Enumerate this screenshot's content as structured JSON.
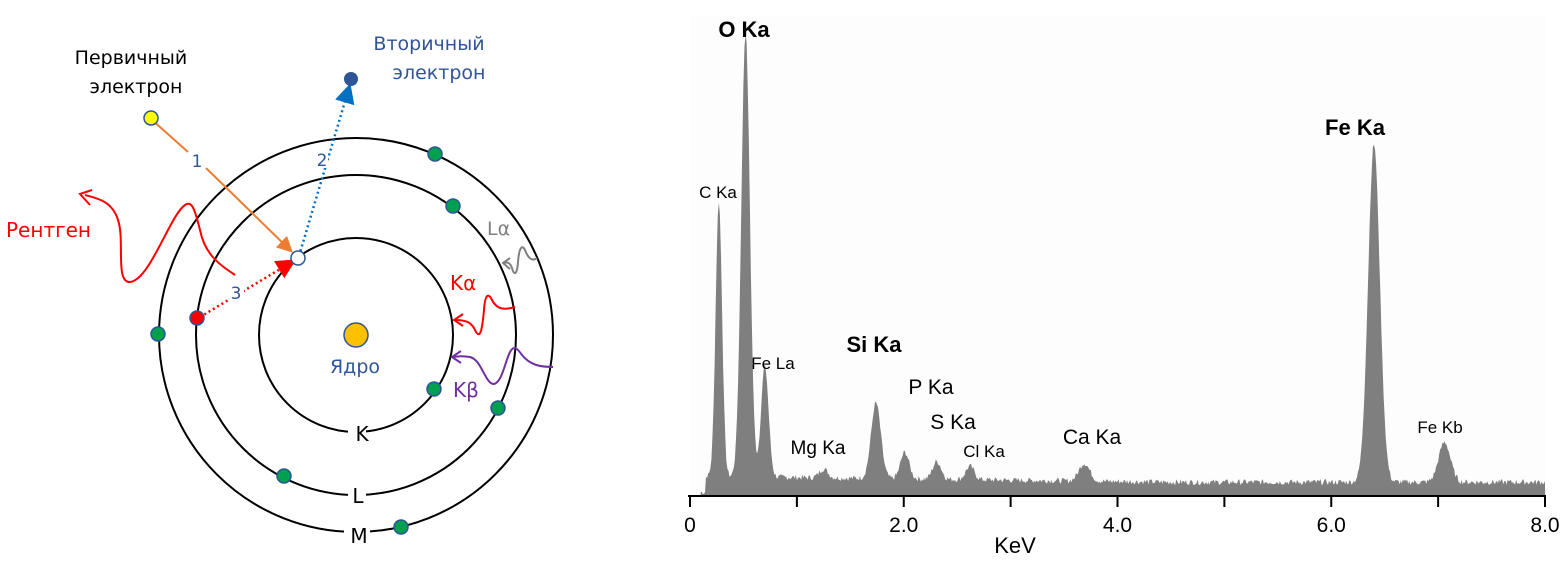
{
  "atom_diagram": {
    "primary_electron_label": [
      "Первичный",
      "электрон"
    ],
    "secondary_electron_label": [
      "Вторичный",
      "электрон"
    ],
    "xray_label": "Рентген",
    "nucleus_label": "Ядро",
    "shell_labels": {
      "K": "K",
      "L": "L",
      "M": "M"
    },
    "step_labels": [
      "1",
      "2",
      "3"
    ],
    "transition_labels": {
      "La": "Lα",
      "Ka": "Kα",
      "Kb": "Kβ"
    },
    "colors": {
      "primary_electron": "#ffff00",
      "secondary_electron": "#2f5597",
      "vacancy_electron": "#ffffff",
      "red_electron": "#ff0000",
      "shell_electron": "#00a050",
      "nucleus": "#ffc000",
      "step1_arrow": "#ed7d31",
      "step2_arrow": "#0070c0",
      "step3_arrow": "#ff0000",
      "xray": "#ff0000",
      "La": "#808080",
      "Ka": "#ff0000",
      "Kb": "#7030a0",
      "blue_text": "#2f5597"
    }
  },
  "chart_data": {
    "type": "area",
    "title": "",
    "xlabel": "KeV",
    "ylabel": "",
    "xlim": [
      0,
      8.0
    ],
    "ylim": [
      0,
      100
    ],
    "x_ticks": [
      0,
      1.0,
      2.0,
      3.0,
      4.0,
      5.0,
      6.0,
      7.0,
      8.0
    ],
    "x_tick_labels": [
      "0",
      "",
      "2.0",
      "",
      "4.0",
      "",
      "6.0",
      "",
      "8.0"
    ],
    "grid": false,
    "background_level": 3,
    "peaks": [
      {
        "label": "C Ka",
        "energy": 0.27,
        "height": 62,
        "width": 0.03,
        "bold": false
      },
      {
        "label": "O Ka",
        "energy": 0.52,
        "height": 100,
        "width": 0.04,
        "bold": true
      },
      {
        "label": "Fe La",
        "energy": 0.7,
        "height": 25,
        "width": 0.035,
        "bold": false
      },
      {
        "label": "Mg Ka",
        "energy": 1.25,
        "height": 2,
        "width": 0.04,
        "bold": false
      },
      {
        "label": "Si Ka",
        "energy": 1.74,
        "height": 17,
        "width": 0.045,
        "bold": true
      },
      {
        "label": "P Ka",
        "energy": 2.01,
        "height": 6,
        "width": 0.04,
        "bold": false
      },
      {
        "label": "S Ka",
        "energy": 2.31,
        "height": 4,
        "width": 0.04,
        "bold": false
      },
      {
        "label": "Cl Ka",
        "energy": 2.62,
        "height": 3,
        "width": 0.04,
        "bold": false
      },
      {
        "label": "Ca Ka",
        "energy": 3.69,
        "height": 4,
        "width": 0.05,
        "bold": false
      },
      {
        "label": "Fe Ka",
        "energy": 6.4,
        "height": 76,
        "width": 0.055,
        "bold": true
      },
      {
        "label": "Fe Kb",
        "energy": 7.06,
        "height": 9,
        "width": 0.055,
        "bold": false
      }
    ]
  }
}
